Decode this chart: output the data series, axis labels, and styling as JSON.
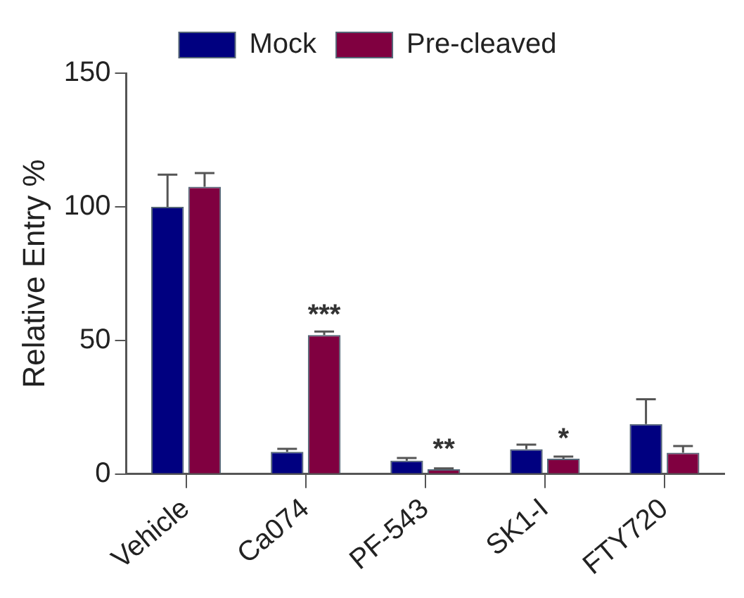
{
  "chart_data": {
    "type": "bar",
    "ylabel": "Relative Entry %",
    "categories": [
      "Vehicle",
      "Ca074",
      "PF-543",
      "SK1-I",
      "FTY720"
    ],
    "series": [
      {
        "name": "Mock",
        "color": "#000080",
        "values": [
          100,
          8.3,
          5,
          9.3,
          18.7
        ],
        "errors": [
          [
            100,
            112
          ],
          [
            8.3,
            9.4
          ],
          [
            5,
            6
          ],
          [
            9.3,
            11
          ],
          [
            18.7,
            28
          ]
        ]
      },
      {
        "name": "Pre-cleaved",
        "color": "#800040",
        "values": [
          107.5,
          52,
          1.8,
          5.7,
          8
        ],
        "errors": [
          [
            107.5,
            112.6
          ],
          [
            52,
            53.3
          ],
          [
            1.8,
            2.1
          ],
          [
            5.7,
            6.5
          ],
          [
            8,
            10.5
          ]
        ]
      }
    ],
    "annotations": [
      {
        "text": "***",
        "x": "Ca074",
        "y": 52
      },
      {
        "text": "**",
        "x": "PF-543",
        "y": 1.8
      },
      {
        "text": "*",
        "x": "SK1-I",
        "y": 5.7
      }
    ],
    "ylim": [
      0,
      150
    ],
    "yticks": [
      0,
      50,
      100,
      150
    ],
    "grid": false,
    "legend": "top"
  }
}
